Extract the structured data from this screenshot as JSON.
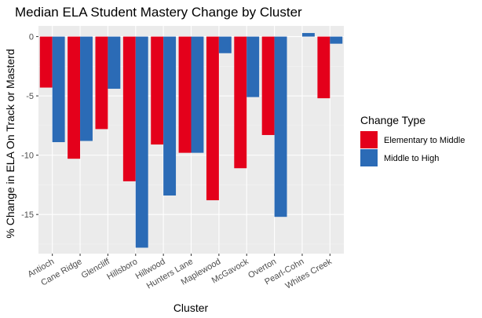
{
  "chart_data": {
    "type": "bar",
    "title": "Median ELA Student Mastery Change by Cluster",
    "xlabel": "Cluster",
    "ylabel": "% Change in ELA On Track or Masterd",
    "categories": [
      "Antioch",
      "Cane Ridge",
      "Glencliff",
      "Hillsboro",
      "Hillwood",
      "Hunters Lane",
      "Maplewood",
      "McGavock",
      "Overton",
      "Pearl-Cohn",
      "Whites Creek"
    ],
    "series": [
      {
        "name": "Elementary to Middle",
        "color": "#e4001b",
        "values": [
          -4.3,
          -10.3,
          -7.8,
          -12.2,
          -9.1,
          -9.8,
          -13.8,
          -11.1,
          -8.3,
          null,
          -5.2
        ]
      },
      {
        "name": "Middle to High",
        "color": "#2b6bb6",
        "values": [
          -8.9,
          -8.8,
          -4.4,
          -17.8,
          -13.4,
          -9.8,
          -1.4,
          -5.1,
          -15.2,
          0.3,
          -0.6
        ]
      }
    ],
    "ylim": [
      -18.3,
      0.9
    ],
    "yticks": [
      0,
      -5,
      -10,
      -15
    ],
    "ytick_labels": [
      "0",
      "-5",
      "-10",
      "-15"
    ],
    "grid": true,
    "legend": {
      "title": "Change Type",
      "position": "right"
    }
  }
}
